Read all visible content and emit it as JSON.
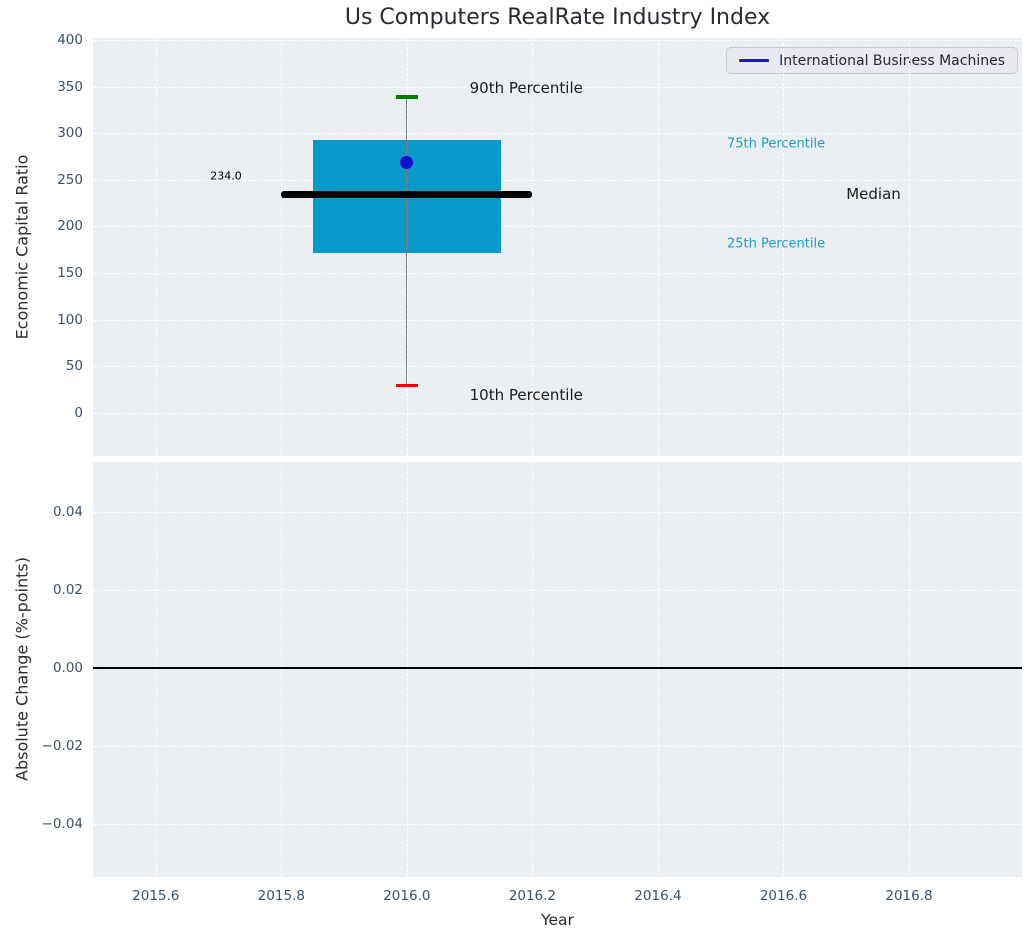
{
  "figure": {
    "title": "Us Computers RealRate Industry Index"
  },
  "legend": {
    "label": "International Business Machines"
  },
  "colors": {
    "plot_bg": "#ebeff1",
    "grid": "#ffffff",
    "tick_label": "#3b5166",
    "text": "#2a2a31",
    "box_fill": "#0899cc",
    "median_line": "#000000",
    "whisker": "#7f7f7f",
    "cap_90th": "#007d00",
    "cap_10th": "#e8000b",
    "company_dot": "#1010d0",
    "legend_line": "#1a1ad6",
    "percentile_text": "#18a0c8",
    "zero_line": "#000000"
  },
  "chart_data": [
    {
      "type": "box",
      "title": "Us Computers RealRate Industry Index",
      "xlabel": "Year",
      "ylabel": "Economic Capital Ratio",
      "xlim": [
        2015.5,
        2016.98
      ],
      "ylim": [
        -46,
        402
      ],
      "grid": true,
      "xticks": [
        2015.6,
        2015.8,
        2016.0,
        2016.2,
        2016.4,
        2016.6,
        2016.8
      ],
      "xtick_labels": [
        "2015.6",
        "2015.8",
        "2016.0",
        "2016.2",
        "2016.4",
        "2016.6",
        "2016.8"
      ],
      "yticks": [
        400,
        350,
        300,
        250,
        200,
        150,
        100,
        50,
        0
      ],
      "ytick_labels": [
        "400",
        "350",
        "300",
        "250",
        "200",
        "150",
        "100",
        "50",
        "0"
      ],
      "legend_position": "upper right",
      "series_label": "International Business Machines",
      "box": {
        "x": 2016.0,
        "p10": 30,
        "p25": 172,
        "median": 234,
        "p75": 293,
        "p90": 339,
        "company_value": 269,
        "median_label": "234.0",
        "box_half_width": 0.15,
        "median_half_width": 0.2
      },
      "annotations": [
        {
          "id": "p90-label",
          "text": "90th Percentile",
          "x": 2016.1,
          "y": 348,
          "size": 15,
          "color": "#1a1a1a",
          "align": "left"
        },
        {
          "id": "p75-label",
          "text": "75th Percentile",
          "x": 2016.51,
          "y": 288,
          "size": 13,
          "color": "#18a0c8",
          "align": "left"
        },
        {
          "id": "median-label",
          "text": "Median",
          "x": 2016.7,
          "y": 235,
          "size": 15,
          "color": "#1a1a1a",
          "align": "left"
        },
        {
          "id": "p25-label",
          "text": "25th Percentile",
          "x": 2016.51,
          "y": 181,
          "size": 13,
          "color": "#18a0c8",
          "align": "left"
        },
        {
          "id": "p10-label",
          "text": "10th Percentile",
          "x": 2016.1,
          "y": 19,
          "size": 15,
          "color": "#1a1a1a",
          "align": "left"
        },
        {
          "id": "median-value-label",
          "text": "234.0",
          "x": 2015.737,
          "y": 254,
          "size": 11,
          "color": "#000000",
          "align": "right"
        }
      ]
    },
    {
      "type": "line",
      "ylabel": "Absolute Change (%-points)",
      "xlim": [
        2015.5,
        2016.98
      ],
      "ylim": [
        -0.0536,
        0.0528
      ],
      "grid": true,
      "xticks": [
        2015.6,
        2015.8,
        2016.0,
        2016.2,
        2016.4,
        2016.6,
        2016.8
      ],
      "yticks": [
        0.04,
        0.02,
        0,
        -0.02,
        -0.04
      ],
      "ytick_labels": [
        "0.04",
        "0.02",
        "0.00",
        "−0.02",
        "−0.04"
      ],
      "zero_line": 0,
      "series": [
        {
          "name": "International Business Machines",
          "x": [],
          "y": []
        }
      ]
    }
  ]
}
